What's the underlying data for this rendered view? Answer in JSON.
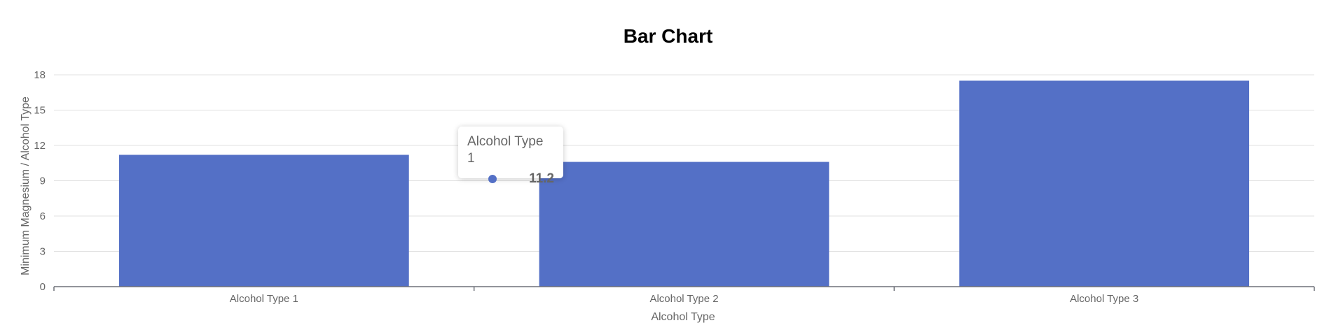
{
  "chart_data": {
    "type": "bar",
    "title": "Bar Chart",
    "xlabel": "Alcohol Type",
    "ylabel": "Minimum Magnesium / Alcohol Type",
    "categories": [
      "Alcohol Type 1",
      "Alcohol Type 2",
      "Alcohol Type 3"
    ],
    "values": [
      11.2,
      10.6,
      17.5
    ],
    "ylim": [
      0,
      18
    ],
    "yticks": [
      0,
      3,
      6,
      9,
      12,
      15,
      18
    ],
    "grid": true,
    "bar_color": "#5470c6"
  },
  "tooltip": {
    "title": "Alcohol Type 1",
    "value": "11.2",
    "color": "#5470c6"
  }
}
